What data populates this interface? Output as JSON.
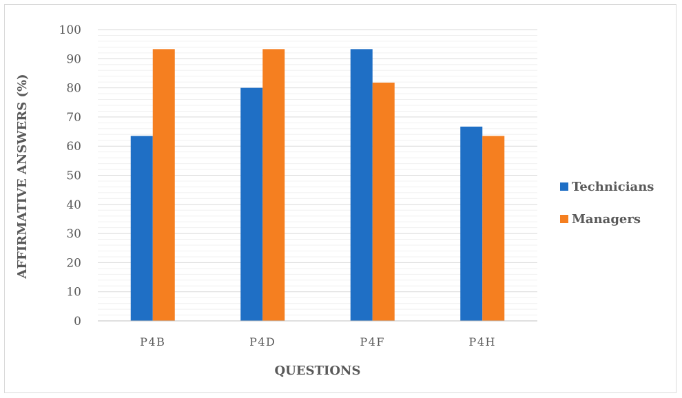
{
  "chart_data": {
    "type": "bar",
    "title": "",
    "xlabel": "QUESTIONS",
    "ylabel": "AFFIRMATIVE ANSWERS (%)",
    "categories": [
      "P4B",
      "P4D",
      "P4F",
      "P4H"
    ],
    "series": [
      {
        "name": "Technicians",
        "color": "#1f6fc5",
        "values": [
          63.5,
          80,
          93.3,
          66.7
        ]
      },
      {
        "name": "Managers",
        "color": "#f57f20",
        "values": [
          93.3,
          93.3,
          81.8,
          63.5
        ]
      }
    ],
    "ylim": [
      0,
      100
    ],
    "yticks": [
      0,
      10,
      20,
      30,
      40,
      50,
      60,
      70,
      80,
      90,
      100
    ],
    "ytick_labels": [
      "0",
      "10",
      "20",
      "30",
      "40",
      "50",
      "60",
      "70",
      "80",
      "90",
      "100"
    ],
    "grid": "major and minor horizontal",
    "legend_position": "right"
  }
}
